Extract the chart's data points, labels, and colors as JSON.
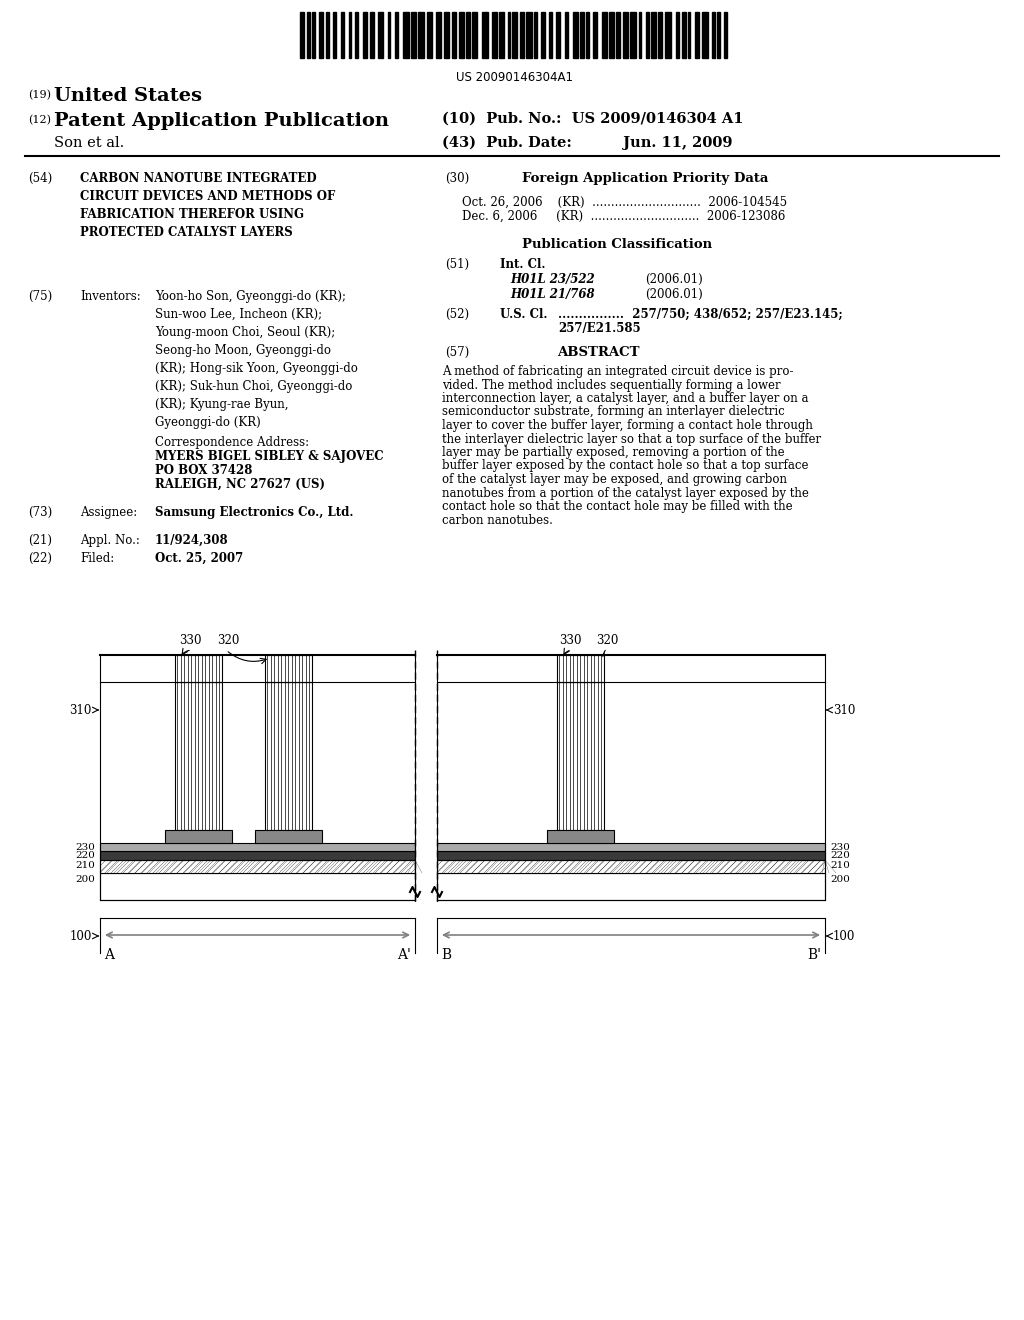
{
  "bg_color": "#ffffff",
  "barcode_text": "US 20090146304A1",
  "header_19_text": "United States",
  "header_12_text": "Patent Application Publication",
  "pub_no_text": "(10)  Pub. No.:  US 2009/0146304 A1",
  "pub_date_text": "(43)  Pub. Date:          Jun. 11, 2009",
  "author_line": "Son et al.",
  "section54_title": "CARBON NANOTUBE INTEGRATED\nCIRCUIT DEVICES AND METHODS OF\nFABRICATION THEREFOR USING\nPROTECTED CATALYST LAYERS",
  "inventors_text": "Yoon-ho Son, Gyeonggi-do (KR);\nSun-woo Lee, Incheon (KR);\nYoung-moon Choi, Seoul (KR);\nSeong-ho Moon, Gyeonggi-do\n(KR); Hong-sik Yoon, Gyeonggi-do\n(KR); Suk-hun Choi, Gyeonggi-do\n(KR); Kyung-rae Byun,\nGyeonggi-do (KR)",
  "corr_line1": "MYERS BIGEL SIBLEY & SAJOVEC",
  "corr_line2": "PO BOX 37428",
  "corr_line3": "RALEIGH, NC 27627 (US)",
  "assignee_text": "Samsung Electronics Co., Ltd.",
  "appl_no": "11/924,308",
  "filed_text": "Oct. 25, 2007",
  "priority1": "Oct. 26, 2006    (KR)  .............................  2006-104545",
  "priority2": "Dec. 6, 2006     (KR)  .............................  2006-123086",
  "class1": "H01L 23/522",
  "class1_year": "(2006.01)",
  "class2": "H01L 21/768",
  "class2_year": "(2006.01)",
  "us_cl_line1": "................  257/750; 438/652; 257/E23.145;",
  "us_cl_line2": "257/E21.585",
  "abstract_lines": [
    "A method of fabricating an integrated circuit device is pro-",
    "vided. The method includes sequentially forming a lower",
    "interconnection layer, a catalyst layer, and a buffer layer on a",
    "semiconductor substrate, forming an interlayer dielectric",
    "layer to cover the buffer layer, forming a contact hole through",
    "the interlayer dielectric layer so that a top surface of the buffer",
    "layer may be partially exposed, removing a portion of the",
    "buffer layer exposed by the contact hole so that a top surface",
    "of the catalyst layer may be exposed, and growing carbon",
    "nanotubes from a portion of the catalyst layer exposed by the",
    "contact hole so that the contact hole may be filled with the",
    "carbon nanotubes."
  ]
}
